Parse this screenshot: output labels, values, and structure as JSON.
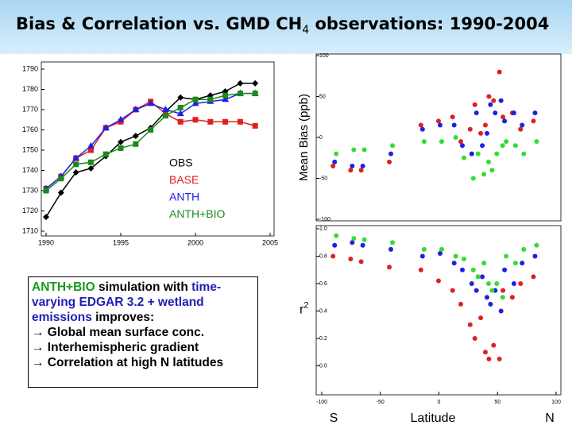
{
  "title": {
    "pre": "Bias & Correlation vs. GMD CH",
    "sub": "4",
    "post": " observations: 1990-2004"
  },
  "text_box": {
    "intro": [
      {
        "text": "ANTH+BIO",
        "color": "#1a9a1a"
      },
      {
        "text": " simulation with ",
        "color": "#000000"
      },
      {
        "text": "time-varying EDGAR 3.2 + wetland emissions",
        "color": "#1f1fb4"
      },
      {
        "text": " improves:",
        "color": "#000000"
      }
    ],
    "bullets": [
      "→ Global mean surface conc.",
      "→ Interhemispheric gradient",
      "→ Correlation at high N latitudes"
    ]
  },
  "chart_data": [
    {
      "type": "line",
      "x": [
        1990,
        1991,
        1992,
        1993,
        1994,
        1995,
        1996,
        1997,
        1998,
        1999,
        2000,
        2001,
        2002,
        2003,
        2004
      ],
      "xlim": [
        1990,
        2005
      ],
      "xticks": [
        1990,
        1995,
        2000,
        2005
      ],
      "ylim": [
        1710,
        1790
      ],
      "yticks": [
        1710,
        1720,
        1730,
        1740,
        1750,
        1760,
        1770,
        1780,
        1790
      ],
      "series": [
        {
          "name": "OBS",
          "color": "#000000",
          "marker": "diamond",
          "values": [
            1717,
            1729,
            1739,
            1741,
            1747,
            1754,
            1757,
            1761,
            1769,
            1776,
            1775,
            1777,
            1779,
            1783,
            1783
          ]
        },
        {
          "name": "BASE",
          "color": "#e02020",
          "marker": "square",
          "values": [
            1731,
            1737,
            1746,
            1750,
            1761,
            1764,
            1770,
            1774,
            1768,
            1764,
            1765,
            1764,
            1764,
            1764,
            1762
          ]
        },
        {
          "name": "ANTH",
          "color": "#2020e0",
          "marker": "triangle",
          "values": [
            1731,
            1737,
            1746,
            1752,
            1761,
            1765,
            1770,
            1773,
            1770,
            1768,
            1773,
            1774,
            1775,
            1778,
            1778
          ]
        },
        {
          "name": "ANTH+BIO",
          "color": "#1a8a1a",
          "marker": "square",
          "values": [
            1730,
            1736,
            1743,
            1744,
            1748,
            1751,
            1753,
            1760,
            1767,
            1771,
            1775,
            1775,
            1777,
            1778,
            1778
          ]
        }
      ]
    },
    {
      "type": "scatter",
      "y_label": "Mean Bias (ppb)",
      "x": [
        -89,
        -74,
        -65,
        -41,
        -14,
        1,
        13,
        20,
        28,
        32,
        37,
        41,
        44,
        48,
        53,
        56,
        64,
        71,
        82
      ],
      "xlim": [
        -100,
        100
      ],
      "ylim": [
        -100,
        100
      ],
      "yticks": [
        -100,
        -50,
        0,
        50,
        100
      ],
      "series": [
        {
          "color": "#e02020",
          "values": [
            -35,
            -40,
            -40,
            -30,
            15,
            20,
            25,
            -5,
            10,
            40,
            5,
            15,
            50,
            45,
            80,
            25,
            30,
            10,
            20
          ]
        },
        {
          "color": "#2020e0",
          "values": [
            -30,
            -35,
            -35,
            -20,
            10,
            15,
            15,
            -10,
            -20,
            30,
            -10,
            5,
            40,
            30,
            45,
            20,
            30,
            15,
            30
          ]
        },
        {
          "color": "#33dd33",
          "values": [
            -20,
            -15,
            -15,
            -10,
            -5,
            -5,
            0,
            -25,
            -50,
            -20,
            -45,
            -30,
            -40,
            -20,
            -10,
            -5,
            -10,
            -20,
            -5
          ]
        }
      ]
    },
    {
      "type": "scatter",
      "y_label": "r",
      "y_label_sup": "2",
      "x_label": "Latitude",
      "x_ends": [
        "S",
        "N"
      ],
      "x": [
        -89,
        -74,
        -65,
        -41,
        -14,
        1,
        13,
        20,
        28,
        32,
        37,
        41,
        44,
        48,
        53,
        56,
        64,
        71,
        82
      ],
      "xlim": [
        -100,
        100
      ],
      "xticks": [
        -100,
        -50,
        0,
        50,
        100
      ],
      "ylim": [
        -0.2,
        1.0
      ],
      "yticks": [
        {
          "value": 0,
          "label": "0.0"
        },
        0.2,
        0.4,
        0.6,
        0.8,
        {
          "value": 1,
          "label": "1.0"
        }
      ],
      "series": [
        {
          "color": "#e02020",
          "values": [
            0.8,
            0.78,
            0.76,
            0.72,
            0.7,
            0.62,
            0.55,
            0.45,
            0.3,
            0.2,
            0.35,
            0.1,
            0.05,
            0.15,
            0.05,
            0.55,
            0.5,
            0.6,
            0.65
          ]
        },
        {
          "color": "#2020e0",
          "values": [
            0.88,
            0.9,
            0.88,
            0.85,
            0.8,
            0.82,
            0.75,
            0.7,
            0.6,
            0.55,
            0.65,
            0.5,
            0.45,
            0.55,
            0.4,
            0.7,
            0.6,
            0.75,
            0.8
          ]
        },
        {
          "color": "#33dd33",
          "values": [
            0.95,
            0.93,
            0.92,
            0.9,
            0.85,
            0.85,
            0.8,
            0.78,
            0.7,
            0.65,
            0.75,
            0.6,
            0.55,
            0.6,
            0.5,
            0.8,
            0.75,
            0.85,
            0.88
          ]
        }
      ]
    }
  ]
}
